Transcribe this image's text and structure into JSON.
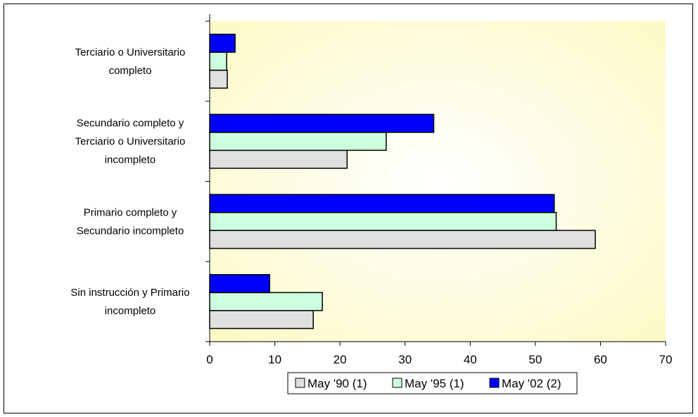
{
  "chart_data": {
    "type": "bar",
    "orientation": "horizontal",
    "categories": [
      [
        "Sin  instrucción y Primario",
        "incompleto"
      ],
      [
        "Primario completo y",
        "Secundario incompleto"
      ],
      [
        "Secundario completo  y",
        "Terciario o Universitario",
        "incompleto"
      ],
      [
        "Terciario o Universitario",
        "completo"
      ]
    ],
    "series": [
      {
        "name": "May '90 (1)",
        "color": "#e0e0e0",
        "values": [
          15.9,
          59.2,
          21.1,
          2.7
        ]
      },
      {
        "name": "May '95 (1)",
        "color": "#ccffdd",
        "values": [
          17.3,
          53.2,
          27.1,
          2.6
        ]
      },
      {
        "name": "May '02 (2)",
        "color": "#0000ff",
        "values": [
          9.2,
          52.9,
          34.4,
          3.9
        ]
      }
    ],
    "xlim": [
      0,
      70
    ],
    "xticks": [
      0,
      10,
      20,
      30,
      40,
      50,
      60,
      70
    ],
    "title": "",
    "xlabel": "",
    "ylabel": "",
    "legend_position": "bottom",
    "grid": false,
    "plot_background": "#fffccc"
  }
}
